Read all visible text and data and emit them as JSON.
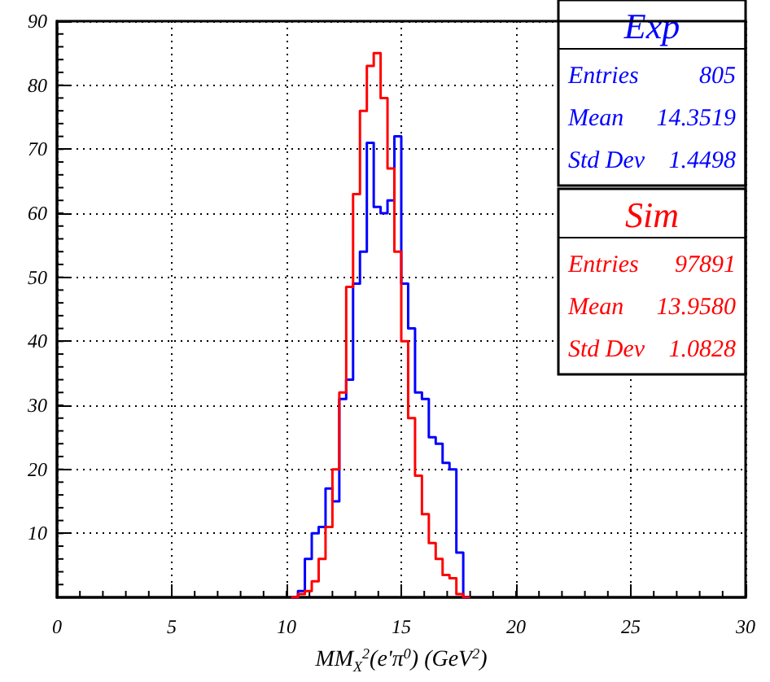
{
  "chart_data": {
    "type": "histogram",
    "xlabel": "MM$_{X}$$^{2}$(e'π$^{0}$) (GeV$^{2}$)",
    "bins": [
      10.2,
      10.5,
      10.8,
      11.1,
      11.4,
      11.7,
      12.0,
      12.3,
      12.6,
      12.9,
      13.2,
      13.5,
      13.8,
      14.1,
      14.4,
      14.7,
      15.0,
      15.3,
      15.6,
      15.9,
      16.2,
      16.5,
      16.8,
      17.1,
      17.4,
      17.7,
      18.0
    ],
    "series": [
      {
        "name": "Exp",
        "color": "#0000ff",
        "values": [
          0,
          1,
          6,
          10,
          11,
          17,
          15,
          31,
          34,
          49,
          54,
          71,
          61,
          60,
          62,
          72,
          49,
          42,
          32,
          31,
          25,
          24,
          21,
          20,
          7,
          0
        ]
      },
      {
        "name": "Sim",
        "color": "#ff0000",
        "values": [
          0,
          0.5,
          1,
          2.5,
          6,
          11,
          20,
          32,
          48.5,
          63,
          76,
          83,
          85,
          78,
          67,
          54,
          40,
          28,
          19,
          13,
          8.5,
          6,
          3.5,
          3,
          0.5,
          0
        ]
      }
    ],
    "annotations": [
      "Entries",
      "805",
      "Mean",
      "14.3519",
      "Std Dev",
      "1.4498",
      "Entries",
      "97891",
      "Mean",
      "13.9580",
      "Std Dev",
      "1.0828"
    ],
    "xlim": [
      0,
      30
    ],
    "xticks": [
      0,
      5,
      10,
      15,
      20,
      25,
      30
    ],
    "ylim": [
      0,
      90
    ],
    "yticks": [
      10,
      20,
      30,
      40,
      50,
      60,
      70,
      80,
      90
    ],
    "grid": true,
    "legend": "top right"
  }
}
